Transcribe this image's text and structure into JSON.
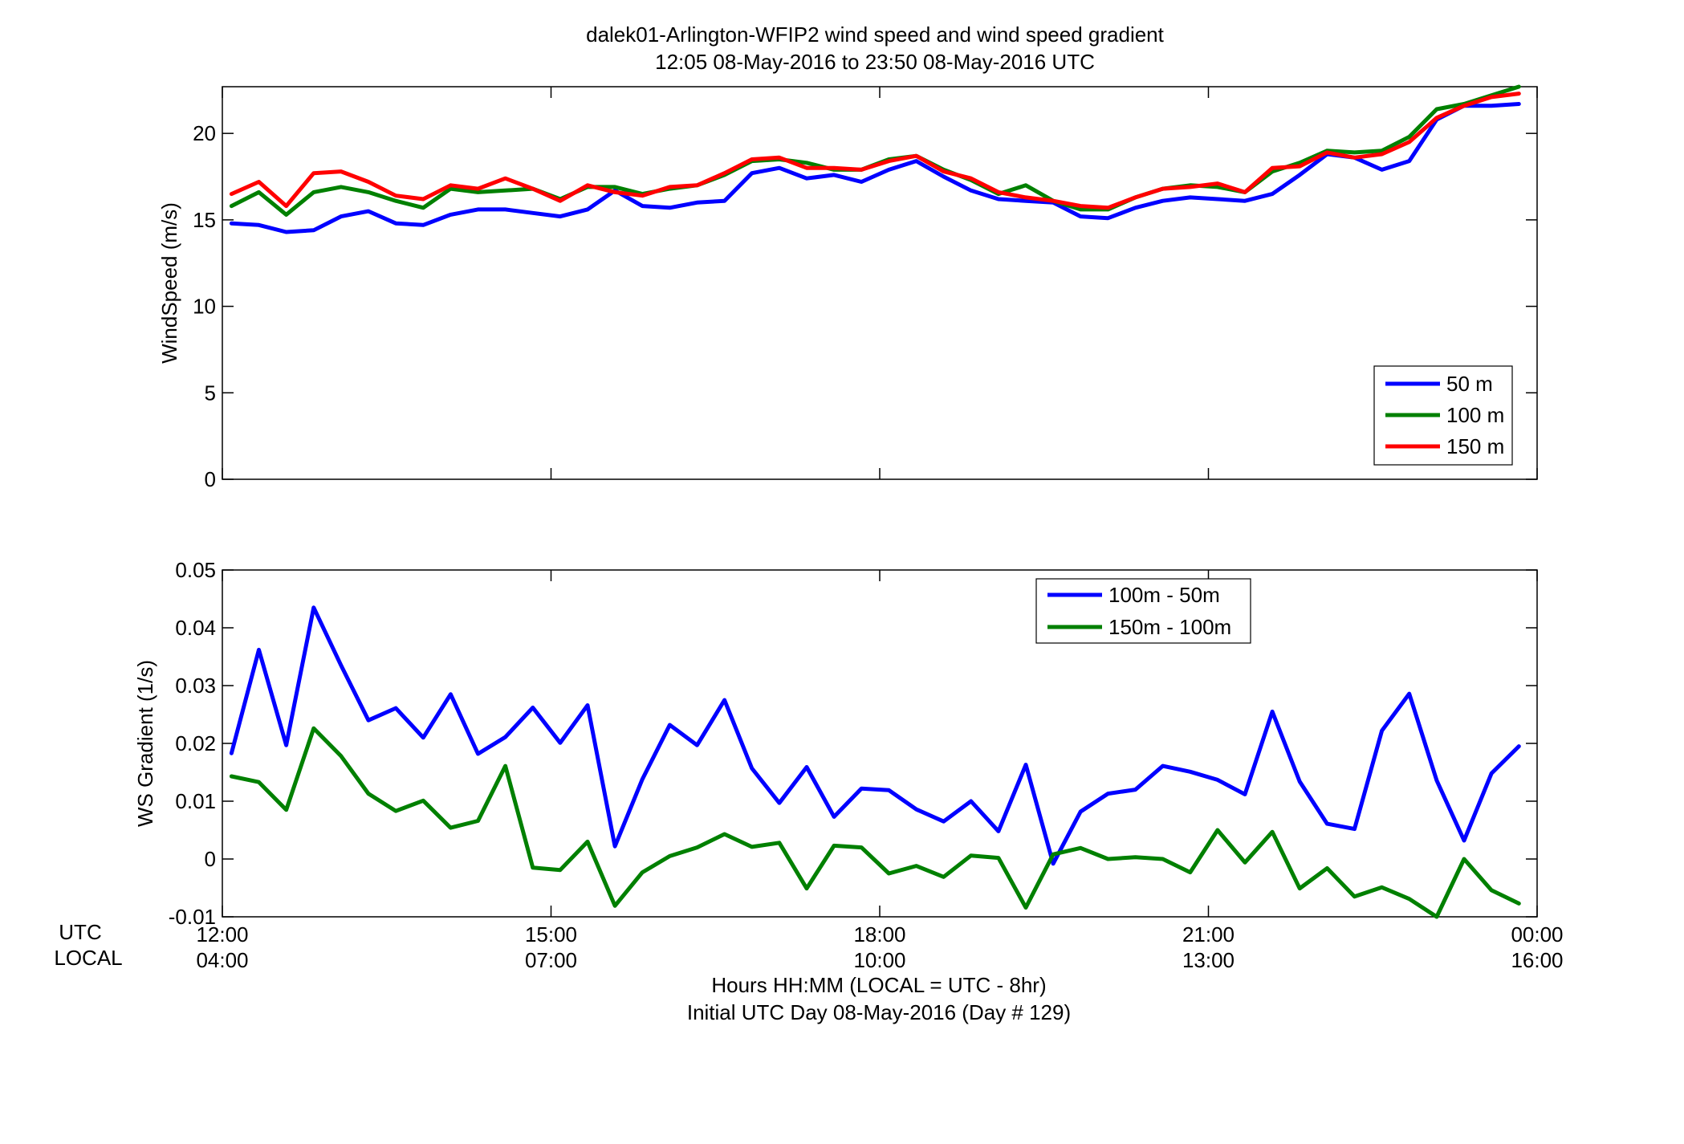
{
  "title": {
    "line1": "dalek01-Arlington-WFIP2  wind speed and wind speed gradient",
    "line2": "12:05 08-May-2016 to 23:50 08-May-2016  UTC"
  },
  "row_labels": {
    "utc": "UTC",
    "local": "LOCAL"
  },
  "xlabel": {
    "line1": "Hours HH:MM  (LOCAL = UTC - 8hr)",
    "line2": "Initial UTC Day 08-May-2016 (Day # 129)"
  },
  "chart_data": [
    {
      "type": "line",
      "ylabel": "WindSpeed (m/s)",
      "xlim": [
        "12:00",
        "24:00"
      ],
      "ylim": [
        0,
        22.7
      ],
      "x_ticks_utc": [
        "12:00",
        "15:00",
        "18:00",
        "21:00",
        "00:00"
      ],
      "x_ticks_local": [
        "04:00",
        "07:00",
        "10:00",
        "13:00",
        "16:00"
      ],
      "y_ticks": [
        "0",
        "5",
        "10",
        "15",
        "20"
      ],
      "grid": false,
      "legend_position": "bottom-right",
      "x": [
        "12:05",
        "12:20",
        "12:35",
        "12:50",
        "13:05",
        "13:20",
        "13:35",
        "13:50",
        "14:05",
        "14:20",
        "14:35",
        "14:50",
        "15:05",
        "15:20",
        "15:35",
        "15:50",
        "16:05",
        "16:20",
        "16:35",
        "16:50",
        "17:05",
        "17:20",
        "17:35",
        "17:50",
        "18:05",
        "18:20",
        "18:35",
        "18:50",
        "19:05",
        "19:20",
        "19:35",
        "19:50",
        "20:05",
        "20:20",
        "20:35",
        "20:50",
        "21:05",
        "21:20",
        "21:35",
        "21:50",
        "22:05",
        "22:20",
        "22:35",
        "22:50",
        "23:05",
        "23:20",
        "23:35",
        "23:50"
      ],
      "series": [
        {
          "name": "50 m",
          "color": "#0000ff",
          "values": [
            14.8,
            14.7,
            14.3,
            14.4,
            15.2,
            15.5,
            14.8,
            14.7,
            15.3,
            15.6,
            15.6,
            15.4,
            15.2,
            15.6,
            16.7,
            15.8,
            15.7,
            16.0,
            16.1,
            17.7,
            18.0,
            17.4,
            17.6,
            17.2,
            17.9,
            18.4,
            17.5,
            16.7,
            16.2,
            16.1,
            16.0,
            15.2,
            15.1,
            15.7,
            16.1,
            16.3,
            16.2,
            16.1,
            16.5,
            17.6,
            18.8,
            18.6,
            17.9,
            18.4,
            20.8,
            21.6,
            21.6,
            21.7
          ]
        },
        {
          "name": "100 m",
          "color": "#008000",
          "values": [
            15.8,
            16.6,
            15.3,
            16.6,
            16.9,
            16.6,
            16.1,
            15.7,
            16.8,
            16.6,
            16.7,
            16.8,
            16.2,
            16.9,
            16.9,
            16.5,
            16.8,
            17.0,
            17.6,
            18.4,
            18.5,
            18.3,
            17.9,
            17.9,
            18.5,
            18.7,
            17.9,
            17.3,
            16.5,
            17.0,
            16.1,
            15.6,
            15.6,
            16.3,
            16.8,
            17.0,
            16.9,
            16.6,
            17.8,
            18.3,
            19.0,
            18.9,
            19.0,
            19.8,
            21.4,
            21.7,
            22.2,
            22.7
          ]
        },
        {
          "name": "150 m",
          "color": "#ff0000",
          "values": [
            16.5,
            17.2,
            15.8,
            17.7,
            17.8,
            17.2,
            16.4,
            16.2,
            17.0,
            16.8,
            17.4,
            16.8,
            16.1,
            17.0,
            16.6,
            16.4,
            16.9,
            17.0,
            17.7,
            18.5,
            18.6,
            18.0,
            18.0,
            17.9,
            18.4,
            18.7,
            17.8,
            17.4,
            16.6,
            16.3,
            16.1,
            15.8,
            15.7,
            16.3,
            16.8,
            16.9,
            17.1,
            16.6,
            18.0,
            18.1,
            18.9,
            18.6,
            18.8,
            19.5,
            20.9,
            21.6,
            22.1,
            22.3
          ]
        }
      ]
    },
    {
      "type": "line",
      "ylabel": "WS Gradient (1/s)",
      "xlim": [
        "12:00",
        "24:00"
      ],
      "ylim": [
        -0.01,
        0.05
      ],
      "x_ticks_utc": [
        "12:00",
        "15:00",
        "18:00",
        "21:00",
        "00:00"
      ],
      "x_ticks_local": [
        "04:00",
        "07:00",
        "10:00",
        "13:00",
        "16:00"
      ],
      "y_ticks": [
        "-0.01",
        "0",
        "0.01",
        "0.02",
        "0.03",
        "0.04",
        "0.05"
      ],
      "grid": false,
      "legend_position": "top-right",
      "x": [
        "12:05",
        "12:20",
        "12:35",
        "12:50",
        "13:05",
        "13:20",
        "13:35",
        "13:50",
        "14:05",
        "14:20",
        "14:35",
        "14:50",
        "15:05",
        "15:20",
        "15:35",
        "15:50",
        "16:05",
        "16:20",
        "16:35",
        "16:50",
        "17:05",
        "17:20",
        "17:35",
        "17:50",
        "18:05",
        "18:20",
        "18:35",
        "18:50",
        "19:05",
        "19:20",
        "19:35",
        "19:50",
        "20:05",
        "20:20",
        "20:35",
        "20:50",
        "21:05",
        "21:20",
        "21:35",
        "21:50",
        "22:05",
        "22:20",
        "22:35",
        "22:50",
        "23:05",
        "23:20",
        "23:35",
        "23:50"
      ],
      "series": [
        {
          "name": "100m - 50m",
          "color": "#0000ff",
          "values": [
            0.0183,
            0.0362,
            0.0197,
            0.0435,
            0.0335,
            0.024,
            0.0261,
            0.021,
            0.0285,
            0.0182,
            0.0211,
            0.0262,
            0.0201,
            0.0266,
            0.0022,
            0.0138,
            0.0232,
            0.0197,
            0.0275,
            0.0157,
            0.0097,
            0.0159,
            0.0073,
            0.0122,
            0.0119,
            0.0086,
            0.0065,
            0.01,
            0.0048,
            0.0163,
            -0.0008,
            0.0082,
            0.0113,
            0.012,
            0.0161,
            0.0151,
            0.0137,
            0.0112,
            0.0255,
            0.0134,
            0.0061,
            0.0052,
            0.0222,
            0.0286,
            0.0136,
            0.0032,
            0.0148,
            0.0195
          ]
        },
        {
          "name": "150m - 100m",
          "color": "#008000",
          "values": [
            0.0143,
            0.0133,
            0.0085,
            0.0226,
            0.0178,
            0.0113,
            0.0083,
            0.0101,
            0.0054,
            0.0066,
            0.0161,
            -0.0015,
            -0.0019,
            0.003,
            -0.0081,
            -0.0023,
            0.0005,
            0.002,
            0.0043,
            0.0021,
            0.0028,
            -0.0051,
            0.0023,
            0.002,
            -0.0025,
            -0.0012,
            -0.0031,
            0.0006,
            0.0002,
            -0.0084,
            0.0008,
            0.0019,
            0.0,
            0.0003,
            0.0,
            -0.0023,
            0.005,
            -0.0006,
            0.0047,
            -0.0051,
            -0.0016,
            -0.0065,
            -0.0049,
            -0.0069,
            -0.01,
            0.0,
            -0.0054,
            -0.0077
          ]
        }
      ]
    }
  ]
}
